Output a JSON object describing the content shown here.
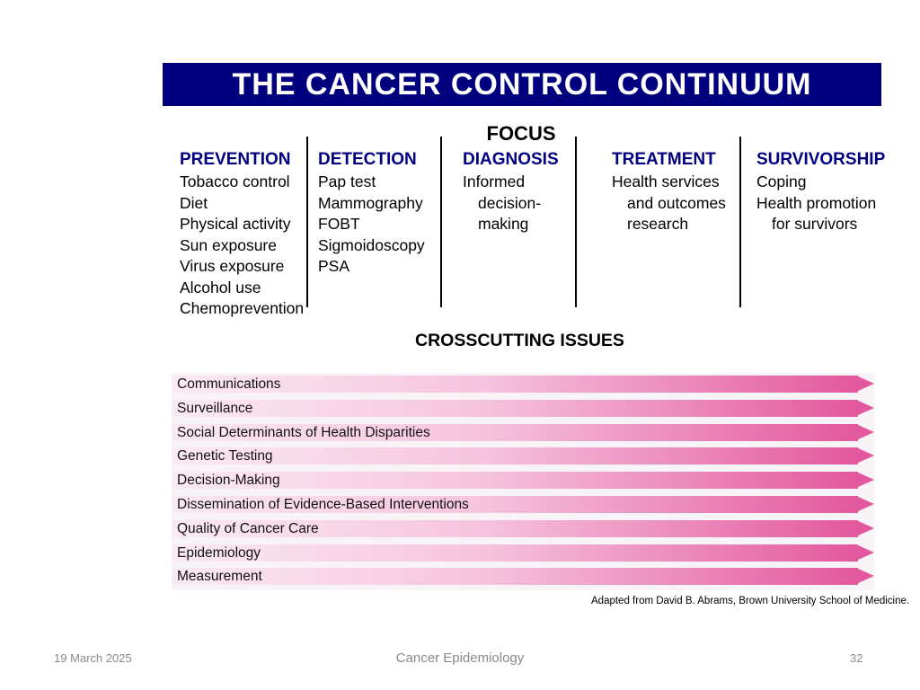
{
  "title": "THE CANCER CONTROL CONTINUUM",
  "focus_label": "FOCUS",
  "columns": [
    {
      "header": "PREVENTION",
      "items": [
        "Tobacco control",
        "Diet",
        "Physical activity",
        "Sun exposure",
        "Virus exposure",
        "Alcohol use",
        "Chemoprevention"
      ],
      "indent": [
        false,
        false,
        false,
        false,
        false,
        false,
        false
      ]
    },
    {
      "header": "DETECTION",
      "items": [
        "Pap test",
        "Mammography",
        "FOBT",
        "Sigmoidoscopy",
        "PSA"
      ],
      "indent": [
        false,
        false,
        false,
        false,
        false
      ]
    },
    {
      "header": "DIAGNOSIS",
      "items": [
        "Informed",
        "decision-",
        "making"
      ],
      "indent": [
        false,
        true,
        true
      ]
    },
    {
      "header": "TREATMENT",
      "items": [
        "Health services",
        "and outcomes",
        "research"
      ],
      "indent": [
        false,
        true,
        true
      ]
    },
    {
      "header": "SURVIVORSHIP",
      "items": [
        "Coping",
        "Health promotion",
        "for survivors"
      ],
      "indent": [
        false,
        false,
        true
      ]
    }
  ],
  "crosscutting_title": "CROSSCUTTING ISSUES",
  "crosscutting_issues": [
    "Communications",
    "Surveillance",
    "Social Determinants of Health Disparities",
    "Genetic Testing",
    "Decision-Making",
    "Dissemination of Evidence-Based Interventions",
    "Quality of Cancer Care",
    "Epidemiology",
    "Measurement"
  ],
  "credit": "Adapted from David B. Abrams, Brown University School of Medicine.",
  "footer": {
    "date": "19 March 2025",
    "center": "Cancer Epidemiology",
    "page": "32"
  },
  "colors": {
    "title_bg": "#00007f",
    "header_text": "#000080",
    "arrow_dark": "#e3589e",
    "arrow_light": "#fbeaf3"
  }
}
